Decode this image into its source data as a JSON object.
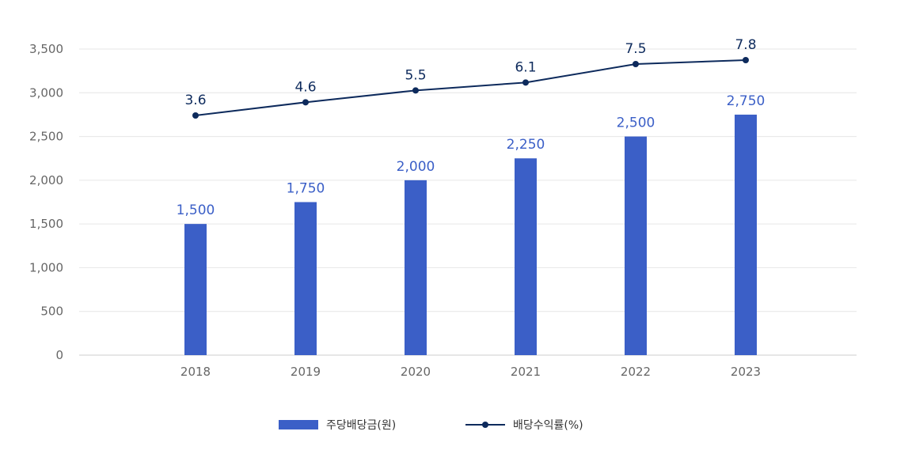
{
  "chart_data": {
    "type": "bar",
    "categories": [
      "2018",
      "2019",
      "2020",
      "2021",
      "2022",
      "2023"
    ],
    "series": [
      {
        "name": "주당배당금(원)",
        "type": "bar",
        "values": [
          1500,
          1750,
          2000,
          2250,
          2500,
          2750
        ],
        "labels": [
          "1,500",
          "1,750",
          "2,000",
          "2,250",
          "2,500",
          "2,750"
        ],
        "color": "#3b5fc7"
      },
      {
        "name": "배당수익률(%)",
        "type": "line",
        "values": [
          3.6,
          4.6,
          5.5,
          6.1,
          7.5,
          7.8
        ],
        "labels": [
          "3.6",
          "4.6",
          "5.5",
          "6.1",
          "7.5",
          "7.8"
        ],
        "color": "#0d2a5c"
      }
    ],
    "y_axis": {
      "range": [
        0,
        3500
      ],
      "ticks": [
        "0",
        "500",
        "1,000",
        "1,500",
        "2,000",
        "2,500",
        "3,000",
        "3,500"
      ]
    },
    "grid": true,
    "legend_position": "bottom"
  }
}
